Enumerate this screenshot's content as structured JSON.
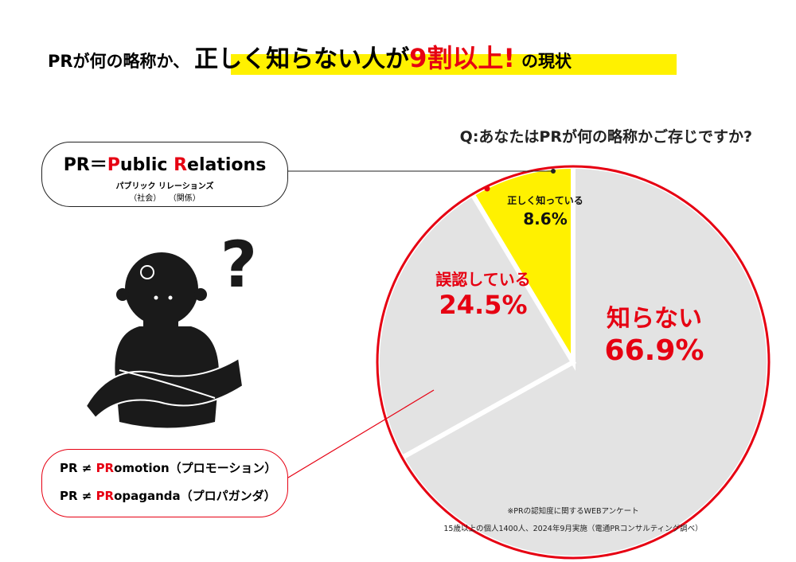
{
  "title": {
    "part1": "PRが何の略称か、",
    "highlight": "正しく知らない人が",
    "accent": "9割以上!",
    "part2": "の現状"
  },
  "definition": {
    "pr_eq": "PR＝",
    "p": "P",
    "ublic": "ublic ",
    "r": "R",
    "elations": "elations",
    "reading": "パブリック リレーションズ",
    "gloss1": "（社会）",
    "gloss2": "（関係）"
  },
  "misconceptions": [
    {
      "prefix": "PR ≠ ",
      "pr": "PR",
      "rest": "omotion（プロモーション）"
    },
    {
      "prefix": "PR ≠ ",
      "pr": "PR",
      "rest": "opaganda（プロパガンダ）"
    }
  ],
  "chart_data": {
    "type": "pie",
    "title": "Q:あなたはPRが何の略称かご存じですか?",
    "categories": [
      "知らない",
      "誤認している",
      "正しく知っている"
    ],
    "values": [
      66.9,
      24.5,
      8.6
    ],
    "value_labels": [
      "66.9%",
      "24.5%",
      "8.6%"
    ],
    "colors": [
      "#e3e3e3",
      "#e3e3e3",
      "#fff100"
    ]
  },
  "footnote": [
    "※PRの認知度に関するWEBアンケート",
    "15歳以上の個人1400人、2024年9月実施（電通PRコンサルティング調べ）"
  ]
}
